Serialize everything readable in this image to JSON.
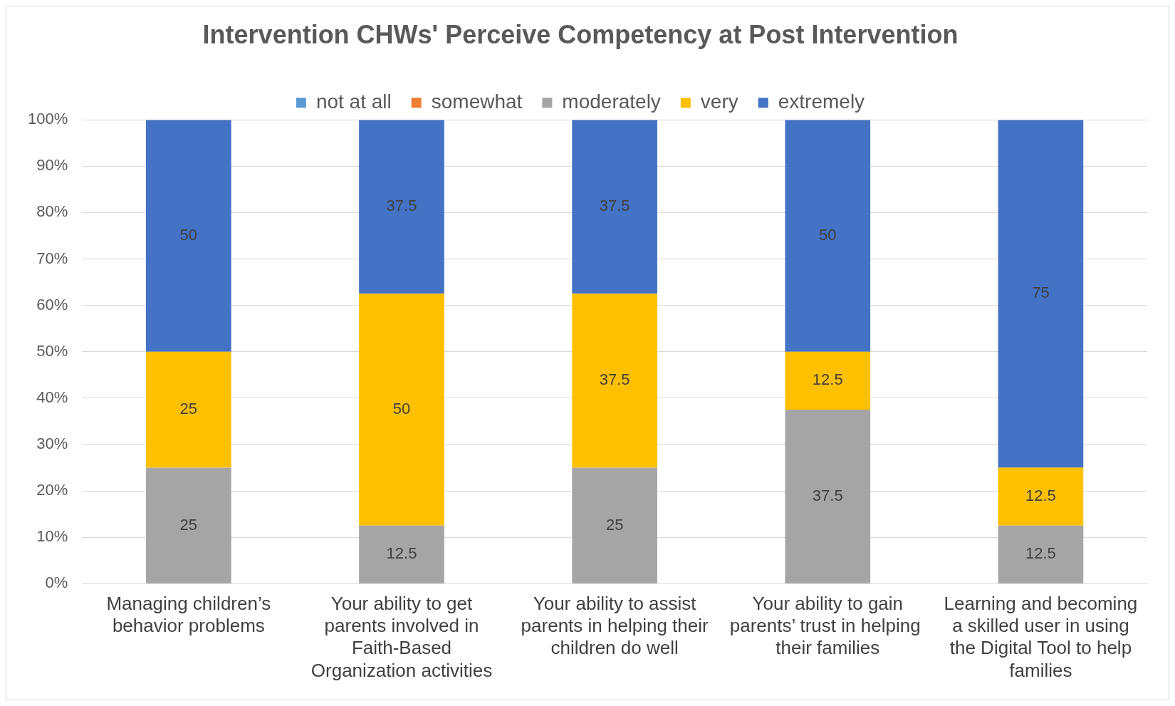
{
  "chart_data": {
    "type": "bar",
    "title": "Intervention CHWs' Perceive Competency at Post Intervention",
    "categories": [
      "Managing children’s behavior problems",
      "Your ability to get parents involved in Faith-Based Organization activities",
      "Your ability to assist parents in helping their children do well",
      "Your ability to gain parents’ trust in helping  their families",
      "Learning and becoming a skilled user in using the Digital Tool to help families"
    ],
    "series": [
      {
        "name": "not at all",
        "color": "#5b9bd5",
        "values": [
          null,
          null,
          null,
          null,
          null
        ]
      },
      {
        "name": "somewhat",
        "color": "#ed7d31",
        "values": [
          null,
          null,
          null,
          null,
          null
        ]
      },
      {
        "name": "moderately",
        "color": "#a5a5a5",
        "values": [
          25,
          12.5,
          25,
          37.5,
          12.5
        ]
      },
      {
        "name": "very",
        "color": "#ffc000",
        "values": [
          25,
          50,
          37.5,
          12.5,
          12.5
        ]
      },
      {
        "name": "extremely",
        "color": "#4472c4",
        "values": [
          50,
          37.5,
          37.5,
          50,
          75
        ]
      }
    ],
    "stacked": true,
    "data_labels": true,
    "legend": "top",
    "grid": "y",
    "ylim": [
      0,
      100
    ],
    "yticks": [
      {
        "value": 0,
        "label": "0%"
      },
      {
        "value": 10,
        "label": "10%"
      },
      {
        "value": 20,
        "label": "20%"
      },
      {
        "value": 30,
        "label": "30%"
      },
      {
        "value": 40,
        "label": "40%"
      },
      {
        "value": 50,
        "label": "50%"
      },
      {
        "value": 60,
        "label": "60%"
      },
      {
        "value": 70,
        "label": "70%"
      },
      {
        "value": 80,
        "label": "80%"
      },
      {
        "value": 90,
        "label": "90%"
      },
      {
        "value": 100,
        "label": "100%"
      }
    ]
  }
}
